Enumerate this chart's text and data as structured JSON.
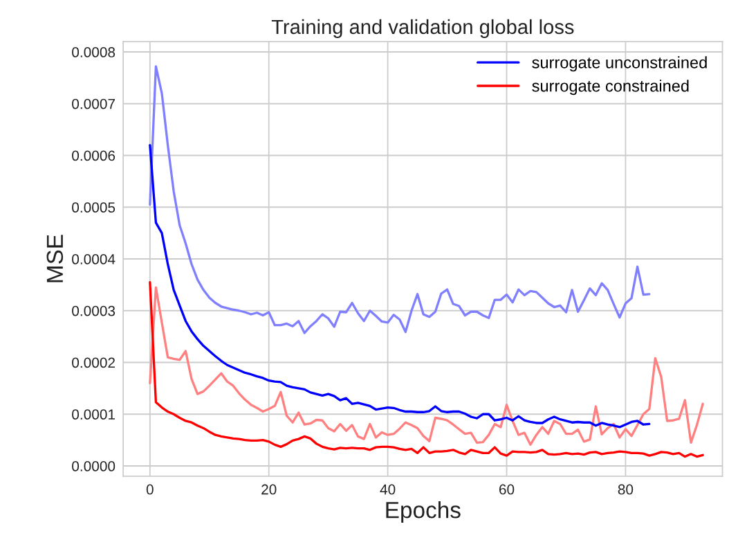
{
  "chart_data": {
    "type": "line",
    "title": "Training and validation global loss",
    "xlabel": "Epochs",
    "ylabel": "MSE",
    "xlim": [
      -4.5,
      96.3
    ],
    "xticks": [
      0,
      20,
      40,
      60,
      80
    ],
    "ylim": [
      -2e-05,
      0.00082
    ],
    "yticks": [
      {
        "value": 0,
        "label": "0.0000"
      },
      {
        "value": 0.0001,
        "label": "0.0001"
      },
      {
        "value": 0.0002,
        "label": "0.0002"
      },
      {
        "value": 0.0003,
        "label": "0.0003"
      },
      {
        "value": 0.0004,
        "label": "0.0004"
      },
      {
        "value": 0.0005,
        "label": "0.0005"
      },
      {
        "value": 0.0006,
        "label": "0.0006"
      },
      {
        "value": 0.0007,
        "label": "0.0007"
      },
      {
        "value": 0.0008,
        "label": "0.0008"
      }
    ],
    "grid": true,
    "legend": "top right",
    "line_style": "solid",
    "series": [
      {
        "color": "#8080ff",
        "x": [
          0,
          1,
          2,
          3,
          4,
          5,
          6,
          7,
          8,
          9,
          10,
          11,
          12,
          13,
          14,
          15,
          16,
          17,
          18,
          19,
          20,
          21,
          22,
          23,
          24,
          25,
          26,
          27,
          28,
          29,
          30,
          31,
          32,
          33,
          34,
          35,
          36,
          37,
          38,
          39,
          40,
          41,
          42,
          43,
          44,
          45,
          46,
          47,
          48,
          49,
          50,
          51,
          52,
          53,
          54,
          55,
          56,
          57,
          58,
          59,
          60,
          61,
          62,
          63,
          64,
          65,
          66,
          67,
          68,
          69,
          70,
          71,
          72,
          73,
          74,
          75,
          76,
          77,
          78,
          79,
          80,
          81,
          82,
          83,
          84
        ],
        "values": [
          0.000505,
          0.000772,
          0.00072,
          0.00062,
          0.00053,
          0.000465,
          0.00043,
          0.00039,
          0.00036,
          0.00034,
          0.000325,
          0.000315,
          0.000308,
          0.000305,
          0.000302,
          0.0003,
          0.000297,
          0.000293,
          0.000296,
          0.000291,
          0.000297,
          0.000272,
          0.000272,
          0.000275,
          0.00027,
          0.00028,
          0.000257,
          0.00027,
          0.00028,
          0.000293,
          0.000285,
          0.000269,
          0.000298,
          0.000297,
          0.000315,
          0.000295,
          0.00028,
          0.0003,
          0.00029,
          0.000279,
          0.000277,
          0.000292,
          0.000283,
          0.000259,
          0.0003,
          0.000332,
          0.000293,
          0.000288,
          0.000298,
          0.000333,
          0.000341,
          0.000313,
          0.000309,
          0.000291,
          0.000298,
          0.000298,
          0.000291,
          0.000286,
          0.000321,
          0.000321,
          0.000331,
          0.000316,
          0.000341,
          0.00033,
          0.000338,
          0.000336,
          0.000325,
          0.000314,
          0.000307,
          0.00031,
          0.000297,
          0.00034,
          0.000298,
          0.00032,
          0.000343,
          0.00033,
          0.000353,
          0.00034,
          0.000313,
          0.000287,
          0.000314,
          0.000324,
          0.000385,
          0.000331,
          0.000332
        ]
      },
      {
        "color": "#ff8080",
        "x": [
          0,
          1,
          2,
          3,
          4,
          5,
          6,
          7,
          8,
          9,
          10,
          11,
          12,
          13,
          14,
          15,
          16,
          17,
          18,
          19,
          20,
          21,
          22,
          23,
          24,
          25,
          26,
          27,
          28,
          29,
          30,
          31,
          32,
          33,
          34,
          35,
          36,
          37,
          38,
          39,
          40,
          41,
          42,
          43,
          44,
          45,
          46,
          47,
          48,
          49,
          50,
          51,
          52,
          53,
          54,
          55,
          56,
          57,
          58,
          59,
          60,
          61,
          62,
          63,
          64,
          65,
          66,
          67,
          68,
          69,
          70,
          71,
          72,
          73,
          74,
          75,
          76,
          77,
          78,
          79,
          80,
          81,
          82,
          83,
          84,
          85,
          86,
          87,
          88,
          89,
          90,
          91,
          92,
          93
        ],
        "values": [
          0.00016,
          0.000345,
          0.000277,
          0.00021,
          0.000207,
          0.000205,
          0.000222,
          0.000168,
          0.000139,
          0.000144,
          0.000155,
          0.000167,
          0.000179,
          0.000163,
          0.000155,
          0.00014,
          0.000128,
          0.000118,
          0.000112,
          0.000105,
          0.00011,
          0.000116,
          0.000143,
          9.7e-05,
          8.4e-05,
          0.000103,
          8e-05,
          8.2e-05,
          8.9e-05,
          8.8e-05,
          7.3e-05,
          6.7e-05,
          8.1e-05,
          6.8e-05,
          7.9e-05,
          5.7e-05,
          5.2e-05,
          8.1e-05,
          5.5e-05,
          6.5e-05,
          6e-05,
          6.2e-05,
          7.2e-05,
          8.4e-05,
          7.9e-05,
          7.3e-05,
          5.8e-05,
          4.8e-05,
          9.3e-05,
          9.1e-05,
          8.8e-05,
          8e-05,
          7.1e-05,
          6.2e-05,
          6.4e-05,
          4.5e-05,
          4.6e-05,
          6e-05,
          8.1e-05,
          7.5e-05,
          0.000118,
          8.7e-05,
          6e-05,
          6.4e-05,
          4.1e-05,
          6e-05,
          7.5e-05,
          6.2e-05,
          8.7e-05,
          8.1e-05,
          6.2e-05,
          6.2e-05,
          7e-05,
          4.7e-05,
          5.1e-05,
          0.000115,
          6.1e-05,
          7.3e-05,
          8.1e-05,
          5.5e-05,
          7.1e-05,
          5.8e-05,
          7.9e-05,
          0.0001,
          0.00011,
          0.000208,
          0.000172,
          8.7e-05,
          8.8e-05,
          9.1e-05,
          0.000127,
          4.5e-05,
          7.9e-05,
          0.00012
        ]
      },
      {
        "name": "surrogate unconstrained",
        "color": "#0000ff",
        "x": [
          0,
          1,
          2,
          3,
          4,
          5,
          6,
          7,
          8,
          9,
          10,
          11,
          12,
          13,
          14,
          15,
          16,
          17,
          18,
          19,
          20,
          21,
          22,
          23,
          24,
          25,
          26,
          27,
          28,
          29,
          30,
          31,
          32,
          33,
          34,
          35,
          36,
          37,
          38,
          39,
          40,
          41,
          42,
          43,
          44,
          45,
          46,
          47,
          48,
          49,
          50,
          51,
          52,
          53,
          54,
          55,
          56,
          57,
          58,
          59,
          60,
          61,
          62,
          63,
          64,
          65,
          66,
          67,
          68,
          69,
          70,
          71,
          72,
          73,
          74,
          75,
          76,
          77,
          78,
          79,
          80,
          81,
          82,
          83,
          84
        ],
        "values": [
          0.00062,
          0.00047,
          0.00045,
          0.00039,
          0.00034,
          0.00031,
          0.00028,
          0.00026,
          0.000245,
          0.000232,
          0.000222,
          0.000212,
          0.000203,
          0.000195,
          0.00019,
          0.000185,
          0.00018,
          0.000177,
          0.000173,
          0.00017,
          0.000165,
          0.000163,
          0.000162,
          0.000155,
          0.000152,
          0.00015,
          0.000148,
          0.000142,
          0.000139,
          0.000136,
          0.000139,
          0.000135,
          0.000127,
          0.000131,
          0.00012,
          0.000122,
          0.000119,
          0.000116,
          0.000109,
          0.000111,
          0.000113,
          0.000112,
          0.000108,
          0.000105,
          0.000105,
          0.000104,
          0.000104,
          0.000106,
          0.000115,
          0.000106,
          0.000104,
          0.000105,
          0.000105,
          0.000101,
          9.5e-05,
          9.2e-05,
          0.0001,
          0.0001,
          8.8e-05,
          9e-05,
          9.3e-05,
          8.8e-05,
          9.6e-05,
          8.8e-05,
          8.5e-05,
          8.3e-05,
          8.3e-05,
          9e-05,
          9.5e-05,
          9e-05,
          8.7e-05,
          8.4e-05,
          8.5e-05,
          8.4e-05,
          8.4e-05,
          7.8e-05,
          8.3e-05,
          8e-05,
          7.8e-05,
          7.5e-05,
          8e-05,
          8.5e-05,
          8.7e-05,
          8e-05,
          8.1e-05
        ]
      },
      {
        "name": "surrogate constrained",
        "color": "#ff0000",
        "x": [
          0,
          1,
          2,
          3,
          4,
          5,
          6,
          7,
          8,
          9,
          10,
          11,
          12,
          13,
          14,
          15,
          16,
          17,
          18,
          19,
          20,
          21,
          22,
          23,
          24,
          25,
          26,
          27,
          28,
          29,
          30,
          31,
          32,
          33,
          34,
          35,
          36,
          37,
          38,
          39,
          40,
          41,
          42,
          43,
          44,
          45,
          46,
          47,
          48,
          49,
          50,
          51,
          52,
          53,
          54,
          55,
          56,
          57,
          58,
          59,
          60,
          61,
          62,
          63,
          64,
          65,
          66,
          67,
          68,
          69,
          70,
          71,
          72,
          73,
          74,
          75,
          76,
          77,
          78,
          79,
          80,
          81,
          82,
          83,
          84,
          85,
          86,
          87,
          88,
          89,
          90,
          91,
          92,
          93
        ],
        "values": [
          0.000355,
          0.000123,
          0.000113,
          0.000105,
          0.0001,
          9.3e-05,
          8.7e-05,
          8.4e-05,
          7.8e-05,
          7.3e-05,
          6.6e-05,
          6e-05,
          5.7e-05,
          5.5e-05,
          5.3e-05,
          5.2e-05,
          5e-05,
          4.9e-05,
          4.9e-05,
          5e-05,
          4.7e-05,
          4.1e-05,
          3.7e-05,
          4.2e-05,
          4.9e-05,
          5.2e-05,
          5.7e-05,
          5.3e-05,
          4.3e-05,
          3.7e-05,
          3.4e-05,
          3.2e-05,
          3.5e-05,
          3.4e-05,
          3.5e-05,
          3.4e-05,
          3.4e-05,
          3.1e-05,
          3.6e-05,
          3.7e-05,
          3.7e-05,
          3.6e-05,
          3.3e-05,
          3.1e-05,
          3.3e-05,
          2.5e-05,
          3.6e-05,
          2.5e-05,
          2.8e-05,
          2.8e-05,
          2.9e-05,
          3.1e-05,
          2.6e-05,
          2.3e-05,
          3.1e-05,
          2.8e-05,
          2.5e-05,
          2.5e-05,
          3.6e-05,
          2.4e-05,
          2e-05,
          2.8e-05,
          2.7e-05,
          2.7e-05,
          2.6e-05,
          2.7e-05,
          3.1e-05,
          2.3e-05,
          2.2e-05,
          2.3e-05,
          2.5e-05,
          2.3e-05,
          2.4e-05,
          2.2e-05,
          2.6e-05,
          2.7e-05,
          2.3e-05,
          2.5e-05,
          2.6e-05,
          2.8e-05,
          2.7e-05,
          2.5e-05,
          2.5e-05,
          2.4e-05,
          2e-05,
          2.3e-05,
          2.7e-05,
          2.6e-05,
          2.3e-05,
          2.5e-05,
          1.8e-05,
          2.3e-05,
          1.8e-05,
          2.1e-05
        ]
      }
    ]
  }
}
